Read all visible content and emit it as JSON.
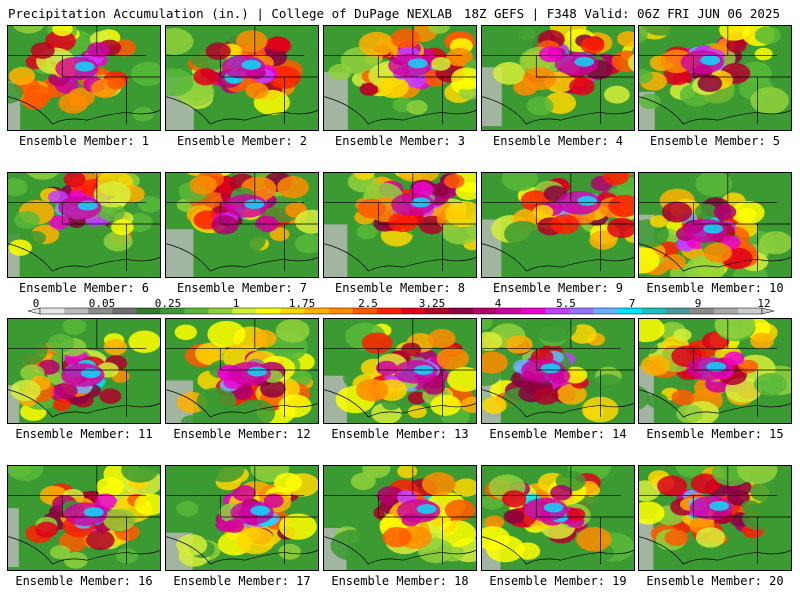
{
  "header": {
    "left": "Precipitation Accumulation (in.) | College of DuPage NEXLAB",
    "right": "18Z GEFS | F348 Valid: 06Z FRI JUN 06 2025"
  },
  "legend": {
    "ticks": [
      "0",
      "0.05",
      "0.25",
      "1",
      "1.75",
      "2.5",
      "3.25",
      "4",
      "5.5",
      "7",
      "9",
      "12"
    ],
    "colors": [
      "#e6e6e6",
      "#bcbcbc",
      "#8c8c8c",
      "#6e6e6e",
      "#2f7d2a",
      "#3c9a32",
      "#58b83a",
      "#8fd13c",
      "#d6ef3a",
      "#ffff00",
      "#ffd700",
      "#ffb000",
      "#ff8c00",
      "#ff5a00",
      "#ff2000",
      "#e0001a",
      "#b0002a",
      "#8a0040",
      "#b00070",
      "#d000a0",
      "#f000d0",
      "#c040ff",
      "#9a70ff",
      "#6ab0ff",
      "#00e5ff",
      "#20c0c0",
      "#4a9a9a",
      "#8a8a8a",
      "#aaaaaa",
      "#cccccc"
    ]
  },
  "members": [
    {
      "label": "Ensemble Member: 1"
    },
    {
      "label": "Ensemble Member: 2"
    },
    {
      "label": "Ensemble Member: 3"
    },
    {
      "label": "Ensemble Member: 4"
    },
    {
      "label": "Ensemble Member: 5"
    },
    {
      "label": "Ensemble Member: 6"
    },
    {
      "label": "Ensemble Member: 7"
    },
    {
      "label": "Ensemble Member: 8"
    },
    {
      "label": "Ensemble Member: 9"
    },
    {
      "label": "Ensemble Member: 10"
    },
    {
      "label": "Ensemble Member: 11"
    },
    {
      "label": "Ensemble Member: 12"
    },
    {
      "label": "Ensemble Member: 13"
    },
    {
      "label": "Ensemble Member: 14"
    },
    {
      "label": "Ensemble Member: 15"
    },
    {
      "label": "Ensemble Member: 16"
    },
    {
      "label": "Ensemble Member: 17"
    },
    {
      "label": "Ensemble Member: 18"
    },
    {
      "label": "Ensemble Member: 19"
    },
    {
      "label": "Ensemble Member: 20"
    }
  ]
}
